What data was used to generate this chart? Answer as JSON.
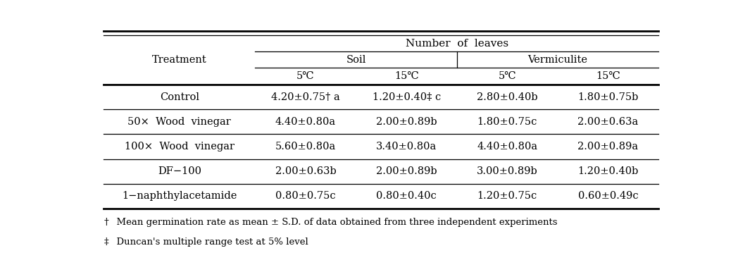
{
  "col_header_l1": "Number  of  leaves",
  "col_header_l2_left": "Soil",
  "col_header_l2_right": "Vermiculite",
  "col_header_l3": [
    "5℃",
    "15℃",
    "5℃",
    "15℃"
  ],
  "row_header": "Treatment",
  "treatments": [
    "Control",
    "50×  Wood  vinegar",
    "100×  Wood  vinegar",
    "DF−100",
    "1−naphthylacetamide"
  ],
  "data": [
    [
      "4.20±0.75† a",
      "1.20±0.40‡ c",
      "2.80±0.40b",
      "1.80±0.75b"
    ],
    [
      "4.40±0.80a",
      "2.00±0.89b",
      "1.80±0.75c",
      "2.00±0.63a"
    ],
    [
      "5.60±0.80a",
      "3.40±0.80a",
      "4.40±0.80a",
      "2.00±0.89a"
    ],
    [
      "2.00±0.63b",
      "2.00±0.89b",
      "3.00±0.89b",
      "1.20±0.40b"
    ],
    [
      "0.80±0.75c",
      "0.80±0.40c",
      "1.20±0.75c",
      "0.60±0.49c"
    ]
  ],
  "footnote1_symbol": "†",
  "footnote1_text": "  Mean germination rate as mean ± S.D. of data obtained from three independent experiments",
  "footnote2_symbol": "‡",
  "footnote2_text": "  Duncan's multiple range test at 5% level",
  "bg_color": "#ffffff",
  "text_color": "#000000",
  "font_size": 10.5,
  "footnote_font_size": 9.5
}
